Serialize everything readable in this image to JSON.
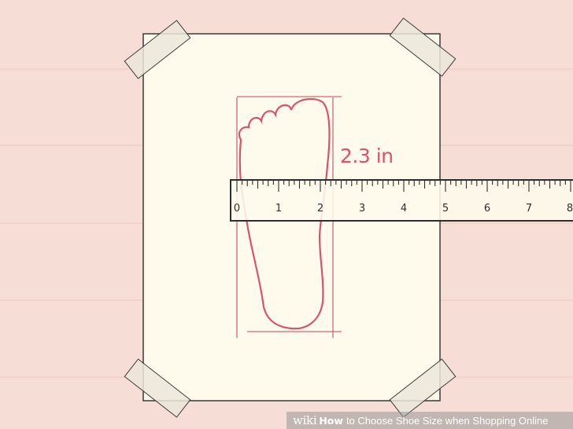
{
  "measurement_label": "2.3 in",
  "ruler": {
    "numbers": [
      "0",
      "1",
      "2",
      "3",
      "4",
      "5",
      "6",
      "7",
      "8"
    ]
  },
  "watermark": {
    "wiki": "wiki",
    "how": "How",
    "title": "to Choose Shoe Size when Shopping Online"
  },
  "colors": {
    "background": "#f6ddd6",
    "paper": "#fefbed",
    "foot_outline": "#d9536b",
    "guide_lines": "#cd6a73",
    "ruler_fill": "#fefbed",
    "ruler_stroke": "#2e2e2e",
    "tape": "#ece6da"
  }
}
